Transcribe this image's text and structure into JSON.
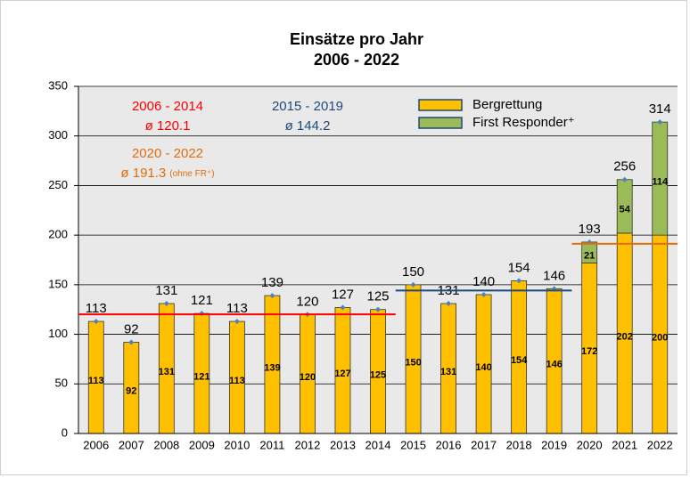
{
  "chart_data": {
    "type": "stacked_bar",
    "title": "Einsätze pro Jahr",
    "subtitle": "2006 - 2022",
    "categories": [
      "2006",
      "2007",
      "2008",
      "2009",
      "2010",
      "2011",
      "2012",
      "2013",
      "2014",
      "2015",
      "2016",
      "2017",
      "2018",
      "2019",
      "2020",
      "2021",
      "2022"
    ],
    "series": [
      {
        "name": "Bergrettung",
        "color": "#ffc000",
        "values": [
          113,
          92,
          131,
          121,
          113,
          139,
          120,
          127,
          125,
          150,
          131,
          140,
          154,
          146,
          172,
          202,
          200
        ]
      },
      {
        "name": "First Responder⁺",
        "color": "#9bbb59",
        "values": [
          null,
          null,
          null,
          null,
          null,
          null,
          null,
          null,
          null,
          null,
          null,
          null,
          null,
          null,
          21,
          54,
          114
        ]
      }
    ],
    "totals": [
      113,
      92,
      131,
      121,
      113,
      139,
      120,
      127,
      125,
      150,
      131,
      140,
      154,
      146,
      193,
      256,
      314
    ],
    "total_marker_color": "#4f81bd",
    "averages": [
      {
        "label": "2006 - 2014",
        "value_label": "ø 120.1",
        "value": 120.1,
        "color": "#ff0000",
        "range": [
          "2006",
          "2014"
        ]
      },
      {
        "label": "2015 - 2019",
        "value_label": "ø 144.2",
        "value": 144.2,
        "color": "#1f497d",
        "range": [
          "2015",
          "2019"
        ]
      },
      {
        "label": "2020 - 2022",
        "value_label": "ø 191.3",
        "note": "(ohne FR⁺)",
        "value": 191.3,
        "color": "#e46c0a",
        "range": [
          "2020",
          "2022"
        ]
      }
    ],
    "ylim": [
      0,
      350
    ],
    "yticks": [
      0,
      50,
      100,
      150,
      200,
      250,
      300,
      350
    ],
    "grid": true,
    "legend": "top-right"
  }
}
